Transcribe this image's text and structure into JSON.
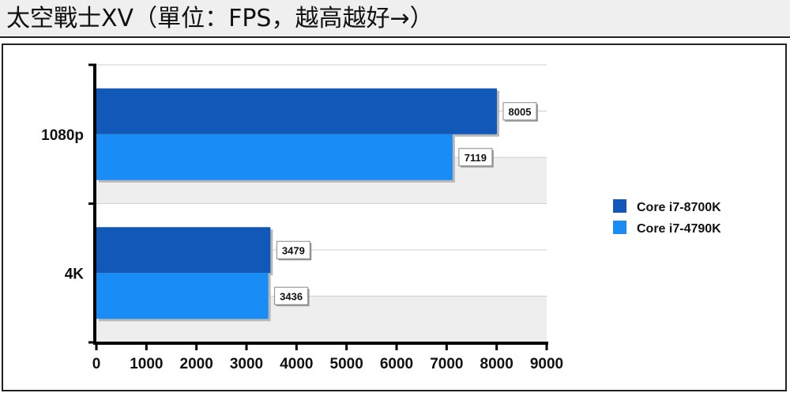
{
  "title": "太空戰士XV（單位：FPS，越高越好→）",
  "chart_data": {
    "type": "bar",
    "orientation": "horizontal",
    "categories": [
      "1080p",
      "4K"
    ],
    "series": [
      {
        "name": "Core i7-8700K",
        "color": "#1158b8",
        "values": [
          8005,
          3479
        ]
      },
      {
        "name": "Core i7-4790K",
        "color": "#1a8cf5",
        "values": [
          7119,
          3436
        ]
      }
    ],
    "xlim": [
      0,
      9000
    ],
    "xticks": [
      0,
      1000,
      2000,
      3000,
      4000,
      5000,
      6000,
      7000,
      8000,
      9000
    ],
    "legend": "right",
    "grid": true
  }
}
